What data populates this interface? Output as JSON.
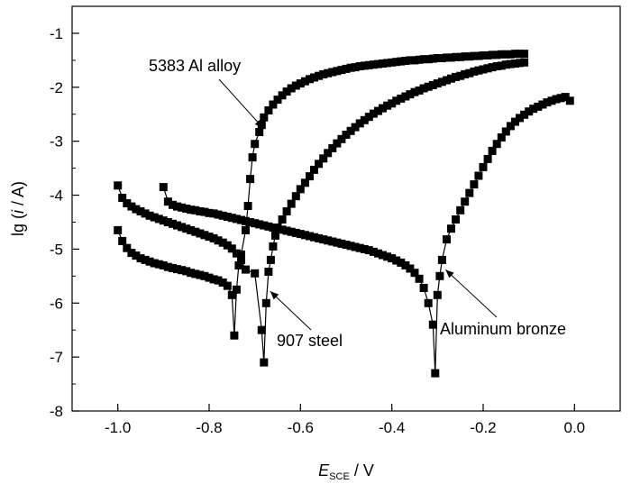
{
  "chart_data": {
    "type": "line",
    "xlabel": {
      "main": "E",
      "sub": "SCE",
      "rest": " / V"
    },
    "ylabel": {
      "pre": "lg (",
      "italic": "i",
      "post": " / A)"
    },
    "xlim": [
      -1.1,
      0.1
    ],
    "ylim": [
      -8,
      -0.5
    ],
    "xticks": [
      -1.0,
      -0.8,
      -0.6,
      -0.4,
      -0.2,
      0.0
    ],
    "xtick_labels": [
      "-1.0",
      "-0.8",
      "-0.6",
      "-0.4",
      "-0.2",
      "0.0"
    ],
    "yticks": [
      -8,
      -7,
      -6,
      -5,
      -4,
      -3,
      -2,
      -1
    ],
    "ytick_labels": [
      "-8",
      "-7",
      "-6",
      "-5",
      "-4",
      "-3",
      "-2",
      "-1"
    ],
    "grid": false,
    "legend": "none",
    "marker": "square",
    "line_color": "#000000",
    "series": [
      {
        "label": "5383 Al alloy",
        "points": [
          [
            -1.0,
            -4.65
          ],
          [
            -0.99,
            -4.85
          ],
          [
            -0.98,
            -4.98
          ],
          [
            -0.97,
            -5.07
          ],
          [
            -0.96,
            -5.12
          ],
          [
            -0.95,
            -5.17
          ],
          [
            -0.94,
            -5.2
          ],
          [
            -0.93,
            -5.23
          ],
          [
            -0.92,
            -5.26
          ],
          [
            -0.91,
            -5.28
          ],
          [
            -0.9,
            -5.3
          ],
          [
            -0.89,
            -5.33
          ],
          [
            -0.88,
            -5.35
          ],
          [
            -0.87,
            -5.37
          ],
          [
            -0.86,
            -5.39
          ],
          [
            -0.85,
            -5.41
          ],
          [
            -0.84,
            -5.44
          ],
          [
            -0.83,
            -5.46
          ],
          [
            -0.82,
            -5.48
          ],
          [
            -0.81,
            -5.5
          ],
          [
            -0.8,
            -5.53
          ],
          [
            -0.79,
            -5.56
          ],
          [
            -0.78,
            -5.58
          ],
          [
            -0.77,
            -5.62
          ],
          [
            -0.76,
            -5.68
          ],
          [
            -0.75,
            -5.85
          ],
          [
            -0.745,
            -6.6
          ],
          [
            -0.74,
            -5.75
          ],
          [
            -0.735,
            -5.3
          ],
          [
            -0.73,
            -5.1
          ],
          [
            -0.72,
            -4.65
          ],
          [
            -0.715,
            -4.2
          ],
          [
            -0.71,
            -3.7
          ],
          [
            -0.705,
            -3.3
          ],
          [
            -0.7,
            -3.05
          ],
          [
            -0.69,
            -2.83
          ],
          [
            -0.685,
            -2.7
          ],
          [
            -0.68,
            -2.56
          ],
          [
            -0.67,
            -2.43
          ],
          [
            -0.66,
            -2.32
          ],
          [
            -0.65,
            -2.23
          ],
          [
            -0.64,
            -2.15
          ],
          [
            -0.63,
            -2.08
          ],
          [
            -0.62,
            -2.02
          ],
          [
            -0.61,
            -1.97
          ],
          [
            -0.6,
            -1.93
          ],
          [
            -0.59,
            -1.89
          ],
          [
            -0.58,
            -1.85
          ],
          [
            -0.57,
            -1.82
          ],
          [
            -0.56,
            -1.79
          ],
          [
            -0.55,
            -1.76
          ],
          [
            -0.54,
            -1.74
          ],
          [
            -0.53,
            -1.72
          ],
          [
            -0.52,
            -1.7
          ],
          [
            -0.51,
            -1.68
          ],
          [
            -0.5,
            -1.66
          ],
          [
            -0.49,
            -1.64
          ],
          [
            -0.48,
            -1.63
          ],
          [
            -0.47,
            -1.61
          ],
          [
            -0.46,
            -1.6
          ],
          [
            -0.45,
            -1.59
          ],
          [
            -0.44,
            -1.58
          ],
          [
            -0.43,
            -1.57
          ],
          [
            -0.42,
            -1.56
          ],
          [
            -0.41,
            -1.55
          ],
          [
            -0.4,
            -1.54
          ],
          [
            -0.39,
            -1.53
          ],
          [
            -0.38,
            -1.52
          ],
          [
            -0.37,
            -1.51
          ],
          [
            -0.36,
            -1.5
          ],
          [
            -0.35,
            -1.5
          ],
          [
            -0.34,
            -1.49
          ],
          [
            -0.33,
            -1.48
          ],
          [
            -0.32,
            -1.48
          ],
          [
            -0.31,
            -1.47
          ],
          [
            -0.3,
            -1.46
          ],
          [
            -0.29,
            -1.46
          ],
          [
            -0.28,
            -1.45
          ],
          [
            -0.27,
            -1.45
          ],
          [
            -0.26,
            -1.44
          ],
          [
            -0.25,
            -1.44
          ],
          [
            -0.24,
            -1.43
          ],
          [
            -0.23,
            -1.43
          ],
          [
            -0.22,
            -1.42
          ],
          [
            -0.21,
            -1.42
          ],
          [
            -0.2,
            -1.41
          ],
          [
            -0.19,
            -1.41
          ],
          [
            -0.18,
            -1.4
          ],
          [
            -0.17,
            -1.4
          ],
          [
            -0.16,
            -1.39
          ],
          [
            -0.15,
            -1.39
          ],
          [
            -0.14,
            -1.39
          ],
          [
            -0.13,
            -1.38
          ],
          [
            -0.12,
            -1.38
          ],
          [
            -0.11,
            -1.38
          ]
        ]
      },
      {
        "label": "907 steel",
        "points": [
          [
            -1.0,
            -3.82
          ],
          [
            -0.99,
            -4.05
          ],
          [
            -0.98,
            -4.15
          ],
          [
            -0.97,
            -4.21
          ],
          [
            -0.96,
            -4.26
          ],
          [
            -0.95,
            -4.3
          ],
          [
            -0.94,
            -4.34
          ],
          [
            -0.93,
            -4.38
          ],
          [
            -0.92,
            -4.41
          ],
          [
            -0.91,
            -4.44
          ],
          [
            -0.9,
            -4.47
          ],
          [
            -0.89,
            -4.5
          ],
          [
            -0.88,
            -4.53
          ],
          [
            -0.87,
            -4.56
          ],
          [
            -0.86,
            -4.59
          ],
          [
            -0.85,
            -4.62
          ],
          [
            -0.84,
            -4.65
          ],
          [
            -0.83,
            -4.68
          ],
          [
            -0.82,
            -4.71
          ],
          [
            -0.81,
            -4.74
          ],
          [
            -0.8,
            -4.77
          ],
          [
            -0.79,
            -4.8
          ],
          [
            -0.78,
            -4.84
          ],
          [
            -0.77,
            -4.88
          ],
          [
            -0.76,
            -4.93
          ],
          [
            -0.75,
            -4.99
          ],
          [
            -0.74,
            -5.08
          ],
          [
            -0.73,
            -5.2
          ],
          [
            -0.72,
            -5.38
          ],
          [
            -0.7,
            -5.45
          ],
          [
            -0.685,
            -6.5
          ],
          [
            -0.68,
            -7.1
          ],
          [
            -0.675,
            -6.0
          ],
          [
            -0.67,
            -5.42
          ],
          [
            -0.665,
            -5.2
          ],
          [
            -0.66,
            -4.95
          ],
          [
            -0.655,
            -4.75
          ],
          [
            -0.65,
            -4.6
          ],
          [
            -0.64,
            -4.45
          ],
          [
            -0.63,
            -4.3
          ],
          [
            -0.62,
            -4.16
          ],
          [
            -0.61,
            -4.02
          ],
          [
            -0.6,
            -3.89
          ],
          [
            -0.59,
            -3.77
          ],
          [
            -0.58,
            -3.65
          ],
          [
            -0.57,
            -3.53
          ],
          [
            -0.56,
            -3.42
          ],
          [
            -0.55,
            -3.32
          ],
          [
            -0.54,
            -3.22
          ],
          [
            -0.53,
            -3.13
          ],
          [
            -0.52,
            -3.04
          ],
          [
            -0.51,
            -2.96
          ],
          [
            -0.5,
            -2.88
          ],
          [
            -0.49,
            -2.81
          ],
          [
            -0.48,
            -2.74
          ],
          [
            -0.47,
            -2.67
          ],
          [
            -0.46,
            -2.61
          ],
          [
            -0.45,
            -2.55
          ],
          [
            -0.44,
            -2.49
          ],
          [
            -0.43,
            -2.44
          ],
          [
            -0.42,
            -2.39
          ],
          [
            -0.41,
            -2.34
          ],
          [
            -0.4,
            -2.3
          ],
          [
            -0.39,
            -2.25
          ],
          [
            -0.38,
            -2.21
          ],
          [
            -0.37,
            -2.17
          ],
          [
            -0.36,
            -2.13
          ],
          [
            -0.35,
            -2.09
          ],
          [
            -0.34,
            -2.06
          ],
          [
            -0.33,
            -2.02
          ],
          [
            -0.32,
            -1.99
          ],
          [
            -0.31,
            -1.96
          ],
          [
            -0.3,
            -1.93
          ],
          [
            -0.29,
            -1.9
          ],
          [
            -0.28,
            -1.87
          ],
          [
            -0.27,
            -1.84
          ],
          [
            -0.26,
            -1.81
          ],
          [
            -0.25,
            -1.79
          ],
          [
            -0.24,
            -1.76
          ],
          [
            -0.23,
            -1.74
          ],
          [
            -0.22,
            -1.71
          ],
          [
            -0.21,
            -1.69
          ],
          [
            -0.2,
            -1.67
          ],
          [
            -0.19,
            -1.65
          ],
          [
            -0.18,
            -1.63
          ],
          [
            -0.17,
            -1.61
          ],
          [
            -0.16,
            -1.6
          ],
          [
            -0.15,
            -1.58
          ],
          [
            -0.14,
            -1.57
          ],
          [
            -0.13,
            -1.56
          ],
          [
            -0.12,
            -1.55
          ],
          [
            -0.11,
            -1.54
          ]
        ]
      },
      {
        "label": "Aluminum bronze",
        "points": [
          [
            -0.9,
            -3.85
          ],
          [
            -0.89,
            -4.12
          ],
          [
            -0.88,
            -4.18
          ],
          [
            -0.87,
            -4.21
          ],
          [
            -0.86,
            -4.23
          ],
          [
            -0.85,
            -4.25
          ],
          [
            -0.84,
            -4.27
          ],
          [
            -0.83,
            -4.28
          ],
          [
            -0.82,
            -4.3
          ],
          [
            -0.81,
            -4.31
          ],
          [
            -0.8,
            -4.33
          ],
          [
            -0.79,
            -4.34
          ],
          [
            -0.78,
            -4.36
          ],
          [
            -0.77,
            -4.38
          ],
          [
            -0.76,
            -4.4
          ],
          [
            -0.75,
            -4.42
          ],
          [
            -0.74,
            -4.44
          ],
          [
            -0.73,
            -4.46
          ],
          [
            -0.72,
            -4.48
          ],
          [
            -0.71,
            -4.5
          ],
          [
            -0.7,
            -4.52
          ],
          [
            -0.69,
            -4.54
          ],
          [
            -0.68,
            -4.56
          ],
          [
            -0.67,
            -4.58
          ],
          [
            -0.66,
            -4.6
          ],
          [
            -0.65,
            -4.62
          ],
          [
            -0.64,
            -4.64
          ],
          [
            -0.63,
            -4.66
          ],
          [
            -0.62,
            -4.68
          ],
          [
            -0.61,
            -4.7
          ],
          [
            -0.6,
            -4.72
          ],
          [
            -0.59,
            -4.74
          ],
          [
            -0.58,
            -4.76
          ],
          [
            -0.57,
            -4.78
          ],
          [
            -0.56,
            -4.8
          ],
          [
            -0.55,
            -4.82
          ],
          [
            -0.54,
            -4.84
          ],
          [
            -0.53,
            -4.86
          ],
          [
            -0.52,
            -4.88
          ],
          [
            -0.51,
            -4.9
          ],
          [
            -0.5,
            -4.92
          ],
          [
            -0.49,
            -4.94
          ],
          [
            -0.48,
            -4.96
          ],
          [
            -0.47,
            -4.98
          ],
          [
            -0.46,
            -5.0
          ],
          [
            -0.45,
            -5.02
          ],
          [
            -0.44,
            -5.05
          ],
          [
            -0.43,
            -5.08
          ],
          [
            -0.42,
            -5.11
          ],
          [
            -0.41,
            -5.14
          ],
          [
            -0.4,
            -5.17
          ],
          [
            -0.39,
            -5.21
          ],
          [
            -0.38,
            -5.25
          ],
          [
            -0.37,
            -5.3
          ],
          [
            -0.36,
            -5.36
          ],
          [
            -0.35,
            -5.44
          ],
          [
            -0.34,
            -5.55
          ],
          [
            -0.33,
            -5.72
          ],
          [
            -0.32,
            -6.0
          ],
          [
            -0.31,
            -6.4
          ],
          [
            -0.305,
            -7.3
          ],
          [
            -0.3,
            -5.85
          ],
          [
            -0.295,
            -5.5
          ],
          [
            -0.29,
            -5.2
          ],
          [
            -0.28,
            -4.82
          ],
          [
            -0.27,
            -4.62
          ],
          [
            -0.26,
            -4.45
          ],
          [
            -0.25,
            -4.28
          ],
          [
            -0.24,
            -4.12
          ],
          [
            -0.23,
            -3.96
          ],
          [
            -0.22,
            -3.8
          ],
          [
            -0.21,
            -3.64
          ],
          [
            -0.2,
            -3.48
          ],
          [
            -0.19,
            -3.33
          ],
          [
            -0.18,
            -3.18
          ],
          [
            -0.17,
            -3.05
          ],
          [
            -0.16,
            -2.93
          ],
          [
            -0.15,
            -2.82
          ],
          [
            -0.14,
            -2.72
          ],
          [
            -0.13,
            -2.64
          ],
          [
            -0.12,
            -2.57
          ],
          [
            -0.11,
            -2.51
          ],
          [
            -0.1,
            -2.45
          ],
          [
            -0.09,
            -2.4
          ],
          [
            -0.08,
            -2.36
          ],
          [
            -0.07,
            -2.32
          ],
          [
            -0.06,
            -2.28
          ],
          [
            -0.05,
            -2.25
          ],
          [
            -0.04,
            -2.22
          ],
          [
            -0.03,
            -2.2
          ],
          [
            -0.02,
            -2.18
          ],
          [
            -0.01,
            -2.25
          ]
        ]
      }
    ],
    "annotations": [
      {
        "text": "5383 Al alloy",
        "target": [
          -0.69,
          -2.82
        ]
      },
      {
        "text": "907 steel",
        "target": [
          -0.67,
          -5.75
        ]
      },
      {
        "text": "Aluminum bronze",
        "target": [
          -0.29,
          -5.35
        ]
      }
    ]
  }
}
